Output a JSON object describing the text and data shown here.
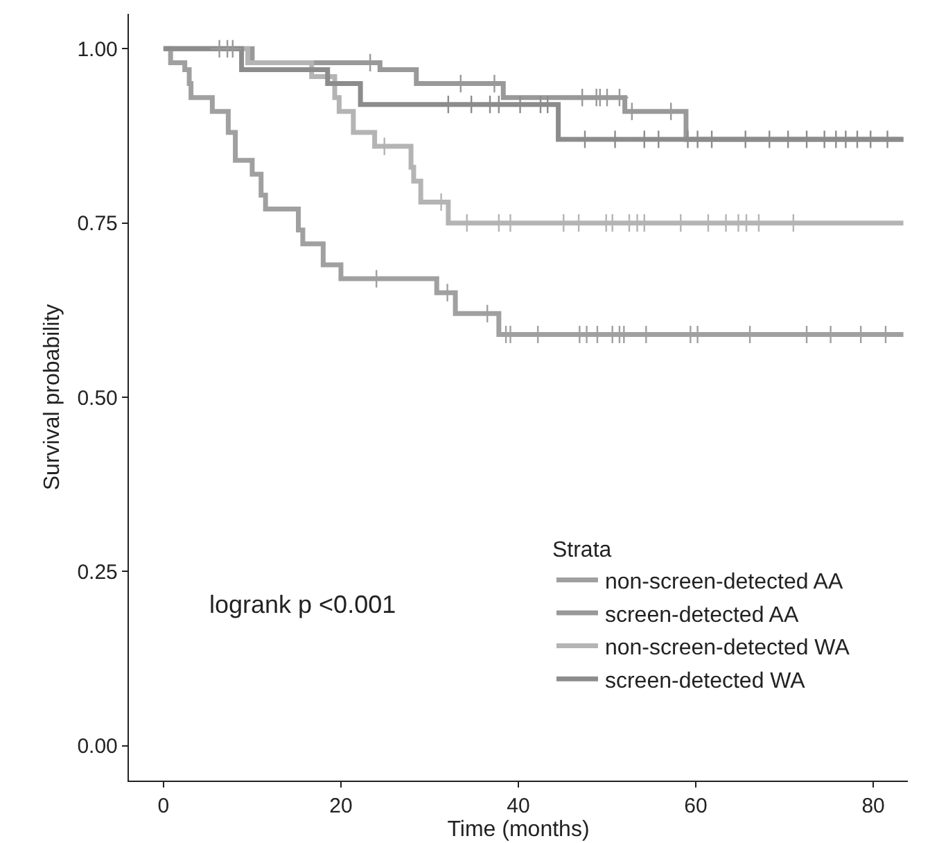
{
  "chart_data": {
    "type": "step",
    "xlabel": "Time (months)",
    "ylabel": "Survival probability",
    "legend_title": "Strata",
    "legend": "bottom right",
    "grid": false,
    "line_style": "solid",
    "xlim": [
      -3.9,
      83.9
    ],
    "xticks": [
      0,
      20,
      40,
      60,
      80
    ],
    "ylim": [
      -0.05,
      1.05
    ],
    "yticks": [
      {
        "value": 0,
        "label": "0.00"
      },
      {
        "value": 0.25,
        "label": "0.25"
      },
      {
        "value": 0.5,
        "label": "0.50"
      },
      {
        "value": 0.75,
        "label": "0.75"
      },
      {
        "value": 1,
        "label": "1.00"
      }
    ],
    "annotations": [
      "logrank p <0.001"
    ],
    "series": [
      {
        "name": "non-screen-detected AA",
        "color": "#a0a0a0",
        "x": [
          0,
          0.8,
          2.4,
          2.9,
          3.1,
          5.5,
          7.3,
          8.1,
          10.0,
          11.0,
          11.5,
          15.2,
          15.7,
          18.0,
          20.0,
          30.8,
          32.9,
          37.8,
          83.4
        ],
        "values": [
          1,
          0.98,
          0.97,
          0.95,
          0.93,
          0.91,
          0.88,
          0.84,
          0.82,
          0.79,
          0.77,
          0.74,
          0.72,
          0.69,
          0.67,
          0.65,
          0.62,
          0.59,
          0.59
        ]
      },
      {
        "name": "screen-detected AA",
        "color": "#999999",
        "x": [
          0,
          10.0,
          24.4,
          28.5,
          38.3,
          52.0,
          58.9,
          83.4
        ],
        "values": [
          1,
          0.98,
          0.97,
          0.95,
          0.93,
          0.91,
          0.87,
          0.87
        ]
      },
      {
        "name": "non-screen-detected WA",
        "color": "#b4b4b4",
        "x": [
          0,
          9.5,
          16.7,
          19.3,
          19.8,
          21.4,
          23.8,
          27.9,
          28.2,
          29.0,
          32.1,
          83.4
        ],
        "values": [
          1,
          0.98,
          0.96,
          0.93,
          0.91,
          0.88,
          0.86,
          0.83,
          0.81,
          0.78,
          0.75,
          0.75
        ]
      },
      {
        "name": "screen-detected WA",
        "color": "#8c8c8c",
        "x": [
          0,
          8.8,
          18.5,
          22.2,
          44.5,
          83.4
        ],
        "values": [
          1,
          0.97,
          0.95,
          0.92,
          0.87,
          0.87
        ]
      },
      {
        "type": "scatter",
        "marker": "cross",
        "color": "#a0a0a0",
        "x": [
          24.0,
          32.0,
          36.5,
          38.6,
          39.1,
          42.2,
          46.9,
          47.7,
          48.9,
          50.6,
          51.4,
          51.9,
          54.4,
          59.4,
          60.2,
          66.1,
          72.5,
          75.2,
          78.6,
          81.4
        ],
        "values": [
          0.67,
          0.65,
          0.62,
          0.59,
          0.59,
          0.59,
          0.59,
          0.59,
          0.59,
          0.59,
          0.59,
          0.59,
          0.59,
          0.59,
          0.59,
          0.59,
          0.59,
          0.59,
          0.59,
          0.59
        ]
      },
      {
        "type": "scatter",
        "marker": "cross",
        "color": "#999999",
        "x": [
          6.3,
          7.2,
          7.8,
          23.3,
          33.5,
          37.3,
          47.2,
          48.8,
          49.2,
          50.0,
          51.4,
          52.8,
          57.2
        ],
        "values": [
          1,
          1,
          1,
          0.98,
          0.95,
          0.95,
          0.93,
          0.93,
          0.93,
          0.93,
          0.93,
          0.91,
          0.91
        ]
      },
      {
        "type": "scatter",
        "marker": "cross",
        "color": "#b4b4b4",
        "x": [
          24.9,
          31.3,
          34.2,
          37.8,
          39.1,
          45.1,
          46.8,
          49.9,
          50.6,
          52.5,
          53.4,
          54.2,
          58.3,
          61.4,
          63.4,
          64.8,
          65.7,
          67.1,
          71.0
        ],
        "values": [
          0.86,
          0.78,
          0.75,
          0.75,
          0.75,
          0.75,
          0.75,
          0.75,
          0.75,
          0.75,
          0.75,
          0.75,
          0.75,
          0.75,
          0.75,
          0.75,
          0.75,
          0.75,
          0.75
        ]
      },
      {
        "type": "scatter",
        "marker": "cross",
        "color": "#8c8c8c",
        "x": [
          32.1,
          34.7,
          36.8,
          37.8,
          40.2,
          42.5,
          43.3,
          47.5,
          50.9,
          54.2,
          55.8,
          59.1,
          60.2,
          61.8,
          65.6,
          68.3,
          70.4,
          72.5,
          74.5,
          75.8,
          76.9,
          78.2,
          79.7,
          81.6
        ],
        "values": [
          0.92,
          0.92,
          0.92,
          0.92,
          0.92,
          0.92,
          0.92,
          0.87,
          0.87,
          0.87,
          0.87,
          0.87,
          0.87,
          0.87,
          0.87,
          0.87,
          0.87,
          0.87,
          0.87,
          0.87,
          0.87,
          0.87,
          0.87,
          0.87
        ]
      }
    ]
  }
}
